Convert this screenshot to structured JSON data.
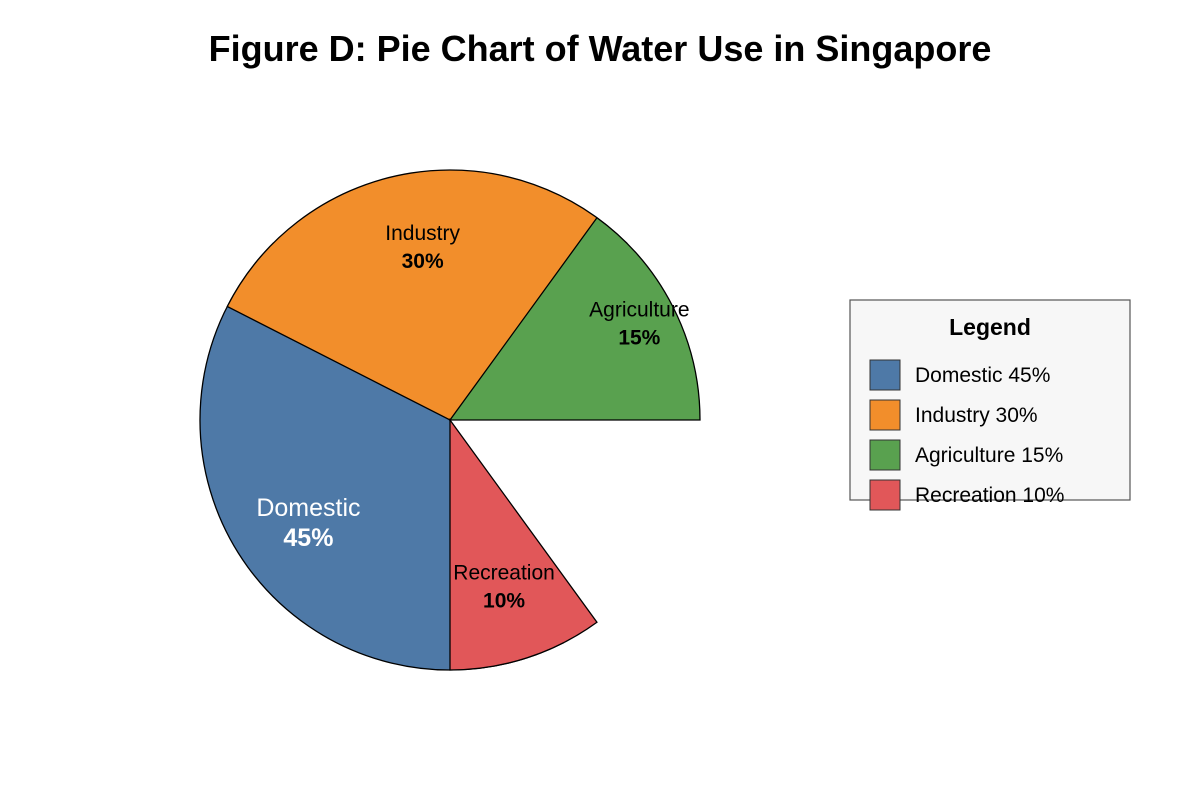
{
  "chart_data": {
    "type": "pie",
    "title": "Figure D: Pie Chart of Water Use in Singapore",
    "categories": [
      "Domestic",
      "Industry",
      "Agriculture",
      "Recreation"
    ],
    "values": [
      45,
      30,
      15,
      10
    ],
    "value_labels": [
      "45%",
      "30%",
      "15%",
      "10%"
    ],
    "colors": [
      "#4e79a7",
      "#f28e2b",
      "#59a14f",
      "#e15759"
    ],
    "label_colors": [
      "#ffffff",
      "#000000",
      "#000000",
      "#000000"
    ],
    "legend": {
      "title": "Legend",
      "placement": "right",
      "entries": [
        "Domestic 45%",
        "Industry 30%",
        "Agriculture 15%",
        "Recreation 10%"
      ]
    }
  }
}
